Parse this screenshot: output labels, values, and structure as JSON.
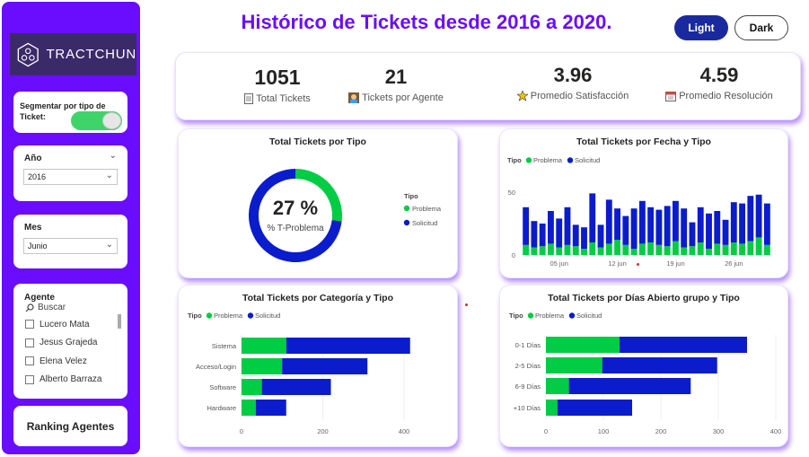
{
  "brand": {
    "name": "TRACTCHUN"
  },
  "header": {
    "title": "Histórico de Tickets desde 2016 a 2020.",
    "light_label": "Light",
    "dark_label": "Dark"
  },
  "sidebar": {
    "segment_label": "Segmentar por tipo de Ticket:",
    "year": {
      "label": "Año",
      "value": "2016"
    },
    "month": {
      "label": "Mes",
      "value": "Junio"
    },
    "agent": {
      "label": "Agente",
      "search_placeholder": "Buscar",
      "items": [
        "Lucero Mata",
        "Jesus Grajeda",
        "Elena Velez",
        "Alberto Barraza"
      ]
    },
    "ranking_label": "Ranking Agentes"
  },
  "kpis": [
    {
      "value": "1051",
      "label": "Total Tickets",
      "icon": "document-icon"
    },
    {
      "value": "21",
      "label": "Tickets por Agente",
      "icon": "agent-icon"
    },
    {
      "value": "3.96",
      "label": "Promedio Satisfacción",
      "icon": "satisfaction-icon"
    },
    {
      "value": "4.59",
      "label": "Promedio Resolución",
      "icon": "calendar-icon"
    }
  ],
  "colors": {
    "accent": "#6a0dff",
    "problema": "#00cc44",
    "solicitud": "#0a1ccc",
    "button_dark_blue": "#1a2a9e"
  },
  "chart_data": [
    {
      "type": "donut",
      "title": "Total Tickets por Tipo",
      "center_value": "27 %",
      "center_label": "% T-Problema",
      "legend_title": "Tipo",
      "legend": [
        "Problema",
        "Solicitud"
      ],
      "values": [
        27,
        73
      ]
    },
    {
      "type": "bar",
      "stacked": true,
      "title": "Total Tickets por Fecha y Tipo",
      "legend_title": "Tipo",
      "legend": [
        "Problema",
        "Solicitud"
      ],
      "x_ticks": [
        "05 jun",
        "12 jun",
        "19 jun",
        "26 jun"
      ],
      "y_ticks": [
        "0",
        "50"
      ],
      "ylim": [
        0,
        60
      ],
      "series": [
        {
          "name": "Problema",
          "values": [
            8,
            6,
            7,
            9,
            6,
            8,
            7,
            5,
            10,
            6,
            9,
            12,
            8,
            5,
            9,
            10,
            8,
            7,
            11,
            6,
            7,
            10,
            5,
            9,
            8,
            10,
            9,
            11,
            14,
            8
          ]
        },
        {
          "name": "Solicitud",
          "values": [
            30,
            21,
            18,
            26,
            23,
            30,
            17,
            17,
            39,
            18,
            35,
            25,
            23,
            32,
            34,
            28,
            28,
            32,
            32,
            31,
            19,
            28,
            28,
            26,
            20,
            32,
            32,
            36,
            34,
            33
          ]
        }
      ]
    },
    {
      "type": "bar",
      "orientation": "horizontal",
      "stacked": true,
      "title": "Total Tickets por Categoría y Tipo",
      "legend_title": "Tipo",
      "legend": [
        "Problema",
        "Solicitud"
      ],
      "categories": [
        "Sistema",
        "Acceso/Login",
        "Software",
        "Hardware"
      ],
      "x_ticks": [
        "0",
        "200",
        "400"
      ],
      "xlim": [
        0,
        420
      ],
      "series": [
        {
          "name": "Problema",
          "values": [
            110,
            100,
            50,
            35
          ]
        },
        {
          "name": "Solicitud",
          "values": [
            305,
            210,
            170,
            75
          ]
        }
      ]
    },
    {
      "type": "bar",
      "orientation": "horizontal",
      "stacked": true,
      "title": "Total Tickets por Días Abierto grupo y Tipo",
      "legend_title": "Tipo",
      "legend": [
        "Problema",
        "Solicitud"
      ],
      "categories": [
        "0-1 Días",
        "2-5 Días",
        "6-9 Días",
        "+10 Días"
      ],
      "x_ticks": [
        "0",
        "100",
        "200",
        "300",
        "400"
      ],
      "xlim": [
        0,
        400
      ],
      "series": [
        {
          "name": "Problema",
          "values": [
            128,
            98,
            40,
            20
          ]
        },
        {
          "name": "Solicitud",
          "values": [
            222,
            200,
            212,
            130
          ]
        }
      ]
    }
  ]
}
